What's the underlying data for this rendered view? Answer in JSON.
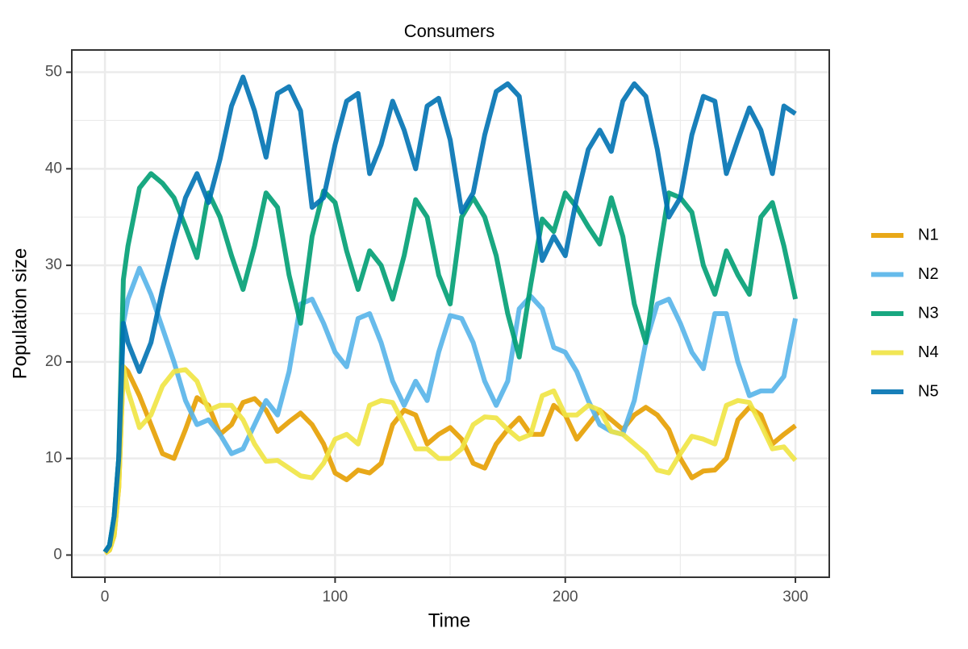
{
  "chart_data": {
    "type": "line",
    "title": "Consumers",
    "x_label": "Time",
    "y_label": "Population size",
    "x": [
      0,
      2,
      4,
      6,
      8,
      10,
      15,
      20,
      25,
      30,
      35,
      40,
      45,
      50,
      55,
      60,
      65,
      70,
      75,
      80,
      85,
      90,
      95,
      100,
      105,
      110,
      115,
      120,
      125,
      130,
      135,
      140,
      145,
      150,
      155,
      160,
      165,
      170,
      175,
      180,
      185,
      190,
      195,
      200,
      205,
      210,
      215,
      220,
      225,
      230,
      235,
      240,
      245,
      250,
      255,
      260,
      265,
      270,
      275,
      280,
      285,
      290,
      295,
      300
    ],
    "series": [
      {
        "name": "N1",
        "color": "#E69F00",
        "values": [
          0.2,
          0.5,
          2,
          7,
          19.5,
          19,
          16.5,
          13.5,
          10.5,
          10,
          13,
          16.3,
          15.5,
          12.5,
          13.5,
          15.8,
          16.2,
          15,
          12.8,
          13.8,
          14.7,
          13.5,
          11.5,
          8.5,
          7.8,
          8.8,
          8.5,
          9.5,
          13.5,
          15,
          14.5,
          11.5,
          12.5,
          13.2,
          12,
          9.5,
          9,
          11.5,
          13,
          14.2,
          12.5,
          12.5,
          15.5,
          14.5,
          12,
          13.5,
          15,
          14,
          13,
          14.5,
          15.3,
          14.5,
          13,
          10,
          8,
          8.7,
          8.8,
          10,
          14,
          15.3,
          14.5,
          11.5,
          12.5,
          13.4
        ]
      },
      {
        "name": "N2",
        "color": "#56B4E9",
        "values": [
          0.3,
          1,
          3.5,
          10,
          24,
          26.5,
          29.7,
          27,
          23.5,
          20,
          16,
          13.5,
          14,
          12.5,
          10.5,
          11,
          13.5,
          16,
          14.5,
          19,
          26,
          26.5,
          24,
          21,
          19.5,
          24.5,
          25,
          22,
          18,
          15.5,
          18,
          16,
          21,
          24.8,
          24.5,
          22,
          18,
          15.5,
          18,
          25.5,
          26.8,
          25.5,
          21.5,
          21,
          19,
          16,
          13.5,
          12.8,
          12.5,
          16,
          22,
          26,
          26.5,
          24,
          21,
          19.3,
          25,
          25,
          20,
          16.5,
          17,
          17,
          18.5,
          24.5
        ]
      },
      {
        "name": "N3",
        "color": "#009E73",
        "values": [
          0.3,
          1,
          4,
          10,
          28.5,
          32,
          38,
          39.5,
          38.5,
          37,
          34,
          30.8,
          37.5,
          35,
          31,
          27.5,
          32,
          37.5,
          36,
          29,
          24,
          33,
          37.7,
          36.5,
          31.5,
          27.5,
          31.5,
          30,
          26.5,
          31,
          36.8,
          35,
          29,
          26,
          35,
          37,
          35,
          31,
          25,
          20.5,
          28,
          34.8,
          33.5,
          37.5,
          36,
          34,
          32.2,
          37,
          33,
          26,
          22,
          30,
          37.5,
          37,
          35.5,
          30,
          27,
          31.5,
          29,
          27,
          35,
          36.5,
          32,
          26.5
        ]
      },
      {
        "name": "N4",
        "color": "#F0E442",
        "values": [
          0.2,
          0.5,
          2,
          7,
          19.5,
          17,
          13.2,
          14.5,
          17.5,
          19,
          19.2,
          18,
          15,
          15.5,
          15.5,
          14,
          11.5,
          9.7,
          9.8,
          9,
          8.2,
          8,
          9.5,
          12,
          12.5,
          11.5,
          15.5,
          16,
          15.8,
          13.5,
          11,
          11,
          10,
          10,
          11,
          13.5,
          14.3,
          14.2,
          13,
          12,
          12.5,
          16.5,
          17,
          14.5,
          14.5,
          15.5,
          15,
          12.8,
          12.5,
          11.5,
          10.5,
          8.8,
          8.5,
          10.5,
          12.3,
          12,
          11.5,
          15.5,
          16,
          15.8,
          13.5,
          11,
          11.2,
          9.8
        ]
      },
      {
        "name": "N5",
        "color": "#0072B2",
        "values": [
          0.3,
          1,
          4,
          10,
          24,
          22,
          19,
          22,
          27.5,
          32.5,
          37,
          39.5,
          36.5,
          41,
          46.5,
          49.5,
          46,
          41.2,
          47.8,
          48.5,
          46,
          36,
          37,
          42.5,
          47,
          47.8,
          39.5,
          42.5,
          47,
          44,
          40,
          46.5,
          47.3,
          43,
          35.5,
          37.5,
          43.5,
          48,
          48.8,
          47.5,
          39,
          30.5,
          33,
          31,
          37,
          42,
          44,
          41.8,
          47,
          48.8,
          47.5,
          42,
          35,
          37,
          43.5,
          47.5,
          47,
          39.5,
          43,
          46.3,
          44,
          39.5,
          46.5,
          45.7
        ]
      }
    ],
    "xlim": [
      -14.4,
      314.7
    ],
    "ylim": [
      -2.3,
      52.3
    ],
    "xticks": [
      0,
      100,
      200,
      300
    ],
    "yticks": [
      0,
      10,
      20,
      30,
      40,
      50
    ],
    "grid": true,
    "legend": "right"
  }
}
